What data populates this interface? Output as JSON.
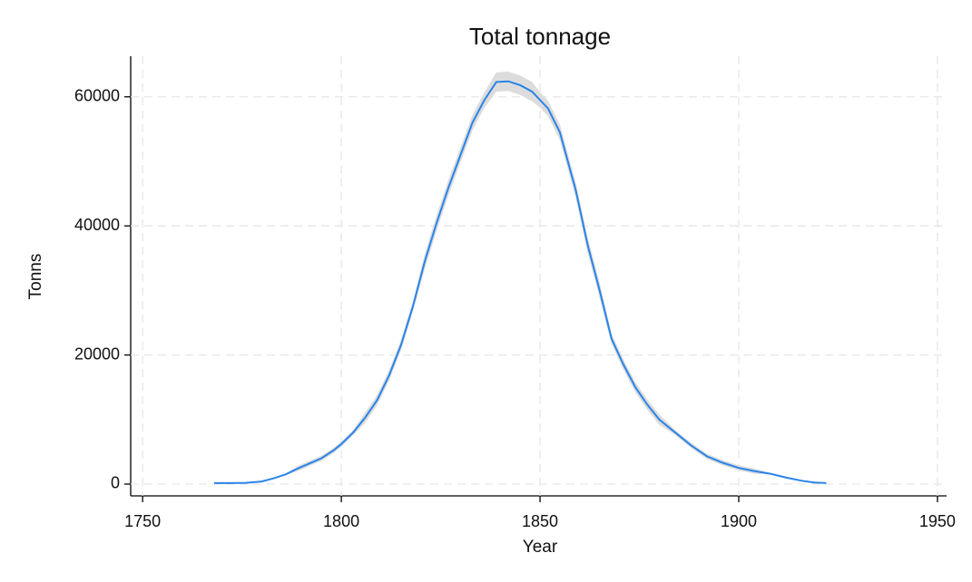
{
  "chart_data": {
    "type": "line",
    "title": "Total tonnage",
    "x_label": "Year",
    "y_label": "Tonns",
    "x": [
      1768,
      1772,
      1776,
      1780,
      1783,
      1786,
      1789,
      1792,
      1795,
      1798,
      1800,
      1803,
      1806,
      1809,
      1812,
      1815,
      1818,
      1821,
      1824,
      1827,
      1830,
      1833,
      1836,
      1839,
      1842,
      1845,
      1848,
      1850,
      1852,
      1855,
      1857,
      1859,
      1862,
      1865,
      1868,
      1871,
      1874,
      1877,
      1880,
      1884,
      1888,
      1892,
      1896,
      1900,
      1904,
      1908,
      1912,
      1916,
      1919,
      1922
    ],
    "series": [
      {
        "color": "#2a84e8",
        "band_color": "#dcdcdc",
        "values": [
          150,
          150,
          200,
          400,
          900,
          1500,
          2400,
          3200,
          4000,
          5200,
          6200,
          8000,
          10300,
          13000,
          16800,
          21500,
          27500,
          34500,
          40500,
          46000,
          51000,
          56000,
          59500,
          62300,
          62400,
          61800,
          60800,
          59500,
          58200,
          54500,
          50000,
          45500,
          37000,
          30000,
          22500,
          18500,
          15000,
          12300,
          10000,
          8000,
          6000,
          4300,
          3300,
          2500,
          2000,
          1600,
          1000,
          500,
          250,
          150
        ],
        "ci_lower": [
          50,
          50,
          100,
          300,
          800,
          1400,
          2000,
          2800,
          3600,
          4800,
          5800,
          7600,
          9500,
          12200,
          16000,
          20700,
          26700,
          33300,
          39300,
          44800,
          49800,
          54800,
          58300,
          60800,
          60900,
          60300,
          59300,
          58300,
          57000,
          53300,
          48800,
          44300,
          35800,
          28800,
          21700,
          17700,
          14200,
          11500,
          9200,
          7600,
          5600,
          3900,
          2900,
          2100,
          1600,
          1500,
          900,
          400,
          150,
          50
        ],
        "ci_upper": [
          250,
          250,
          300,
          500,
          1000,
          1600,
          2800,
          3600,
          4400,
          5600,
          6600,
          8400,
          11100,
          13800,
          17600,
          22300,
          28300,
          35700,
          41700,
          47200,
          52200,
          57200,
          60700,
          63800,
          63900,
          63300,
          62300,
          60700,
          59400,
          55700,
          51200,
          46700,
          38200,
          31200,
          23300,
          19300,
          15800,
          13100,
          10800,
          8400,
          6400,
          4700,
          3700,
          2900,
          2400,
          1700,
          1100,
          600,
          350,
          250
        ]
      }
    ],
    "xlim": [
      1747,
      1952.3
    ],
    "ylim": [
      -1826,
      66290
    ],
    "xticks": [
      1750,
      1800,
      1850,
      1900,
      1950
    ],
    "yticks": [
      0,
      20000,
      40000,
      60000
    ],
    "grid": true
  }
}
